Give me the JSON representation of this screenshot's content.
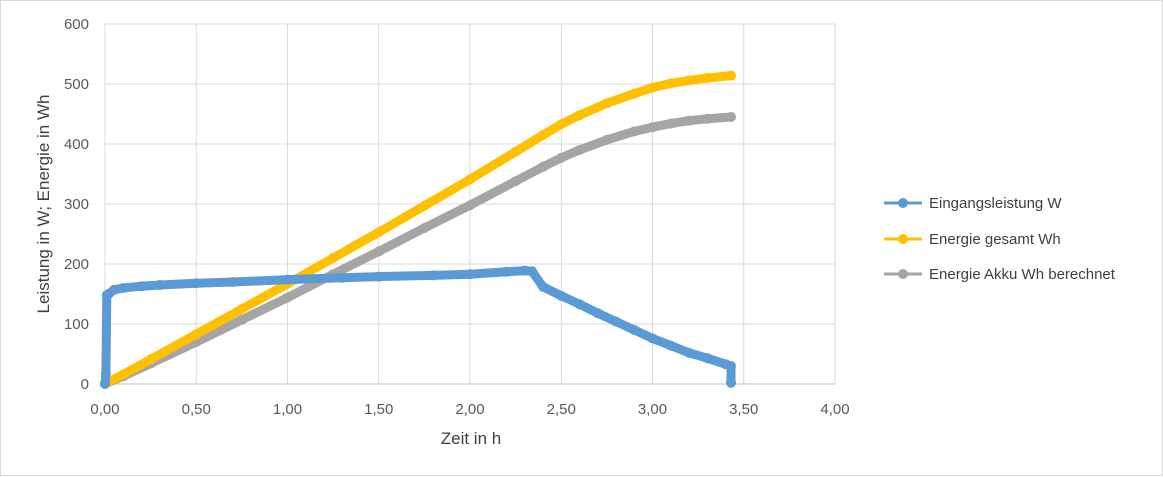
{
  "chart_data": {
    "type": "scatter",
    "title": "",
    "xlabel": "Zeit in h",
    "ylabel": "Leistung in W; Energie in Wh",
    "xlim": [
      0,
      4
    ],
    "ylim": [
      0,
      600
    ],
    "x_ticks": [
      "0,00",
      "0,50",
      "1,00",
      "1,50",
      "2,00",
      "2,50",
      "3,00",
      "3,50",
      "4,00"
    ],
    "y_ticks": [
      "0",
      "100",
      "200",
      "300",
      "400",
      "500",
      "600"
    ],
    "grid": true,
    "legend_position": "right",
    "series": [
      {
        "name": "Eingangsleistung W",
        "color": "#5b9bd5",
        "x": [
          0,
          0.005,
          0.01,
          0.02,
          0.05,
          0.1,
          0.2,
          0.3,
          0.5,
          0.7,
          1.0,
          1.3,
          1.5,
          1.8,
          2.0,
          2.2,
          2.3,
          2.34,
          2.4,
          2.5,
          2.6,
          2.7,
          2.8,
          2.9,
          3.0,
          3.1,
          3.2,
          3.3,
          3.4,
          3.43,
          3.43
        ],
        "y": [
          0,
          17,
          148,
          150,
          157,
          160,
          163,
          165,
          168,
          170,
          174,
          177,
          179,
          181,
          183,
          187,
          189,
          188,
          162,
          147,
          133,
          118,
          104,
          90,
          76,
          64,
          52,
          43,
          33,
          30,
          2
        ]
      },
      {
        "name": "Energie gesamt Wh",
        "color": "#ffc000",
        "x": [
          0,
          0.1,
          0.25,
          0.5,
          0.75,
          1.0,
          1.25,
          1.5,
          1.75,
          2.0,
          2.25,
          2.4,
          2.5,
          2.6,
          2.75,
          2.9,
          3.0,
          3.1,
          3.2,
          3.3,
          3.43
        ],
        "y": [
          0,
          16,
          41,
          83,
          125,
          167,
          210,
          253,
          297,
          341,
          387,
          415,
          433,
          448,
          468,
          484,
          494,
          501,
          506,
          510,
          514
        ]
      },
      {
        "name": "Energie Akku Wh berechnet",
        "color": "#a5a5a5",
        "x": [
          0,
          0.1,
          0.25,
          0.5,
          0.75,
          1.0,
          1.25,
          1.5,
          1.75,
          2.0,
          2.25,
          2.4,
          2.5,
          2.6,
          2.75,
          2.9,
          3.0,
          3.1,
          3.2,
          3.3,
          3.43
        ],
        "y": [
          0,
          13,
          34,
          70,
          107,
          144,
          183,
          221,
          260,
          298,
          338,
          362,
          377,
          390,
          407,
          421,
          428,
          434,
          439,
          442,
          445
        ]
      }
    ]
  }
}
